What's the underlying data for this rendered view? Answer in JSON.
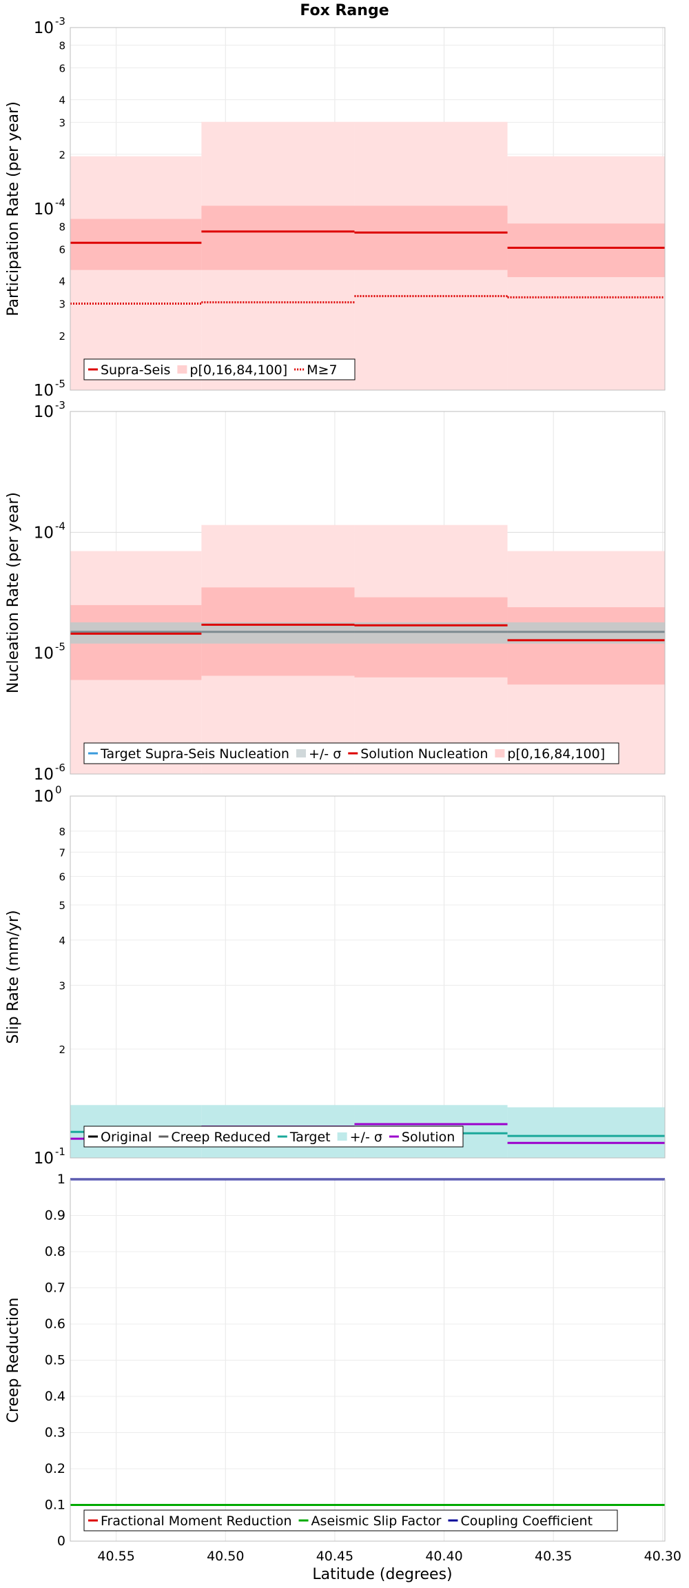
{
  "title": "Fox Range",
  "xlabel": "Latitude (degrees)",
  "x_ticks": [
    "40.55",
    "40.50",
    "40.45",
    "40.40",
    "40.35",
    "40.30"
  ],
  "chart_data": [
    {
      "type": "line",
      "ylabel": "Participation Rate (per year)",
      "scale": "log",
      "ylim": [
        1e-05,
        0.001
      ],
      "xlim": [
        40.571,
        40.299
      ],
      "y_ticks": [
        {
          "v": 1e-05,
          "base": "10",
          "exp": "-5",
          "major": true
        },
        {
          "v": 2e-05,
          "label": "2"
        },
        {
          "v": 3e-05,
          "label": "3"
        },
        {
          "v": 4e-05,
          "label": "4"
        },
        {
          "v": 6e-05,
          "label": "6"
        },
        {
          "v": 8e-05,
          "label": "8"
        },
        {
          "v": 0.0001,
          "base": "10",
          "exp": "-4",
          "major": true
        },
        {
          "v": 0.0002,
          "label": "2"
        },
        {
          "v": 0.0003,
          "label": "3"
        },
        {
          "v": 0.0004,
          "label": "4"
        },
        {
          "v": 0.0006,
          "label": "6"
        },
        {
          "v": 0.0008,
          "label": "8"
        },
        {
          "v": 0.001,
          "base": "10",
          "exp": "-3",
          "major": true
        }
      ],
      "segments": [
        [
          40.571,
          40.511
        ],
        [
          40.511,
          40.441
        ],
        [
          40.441,
          40.371
        ],
        [
          40.371,
          40.299
        ]
      ],
      "bands": [
        {
          "color": "#ffe0e0",
          "low": [
            1e-05,
            1e-05,
            1e-05,
            1e-05
          ],
          "high": [
            0.000195,
            0.000302,
            0.000302,
            0.000195
          ]
        },
        {
          "color": "#ffbcbc",
          "low": [
            4.6e-05,
            4.6e-05,
            4.6e-05,
            4.2e-05
          ],
          "high": [
            8.8e-05,
            0.000104,
            0.000104,
            8.3e-05
          ]
        }
      ],
      "series": [
        {
          "name": "Supra-Seis",
          "color": "#dd0000",
          "style": "solid",
          "values": [
            6.5e-05,
            7.5e-05,
            7.4e-05,
            6.1e-05
          ]
        },
        {
          "name": "M≥7",
          "color": "#dd0000",
          "style": "dotted",
          "values": [
            3e-05,
            3.05e-05,
            3.3e-05,
            3.25e-05
          ]
        }
      ],
      "legend": {
        "placement": "lower-left",
        "items": [
          {
            "label": "Supra-Seis",
            "color": "#dd0000",
            "kind": "line"
          },
          {
            "label": "p[0,16,84,100]",
            "color": "#ffd0d0",
            "kind": "patch"
          },
          {
            "label": "M≥7",
            "color": "#dd0000",
            "kind": "dotted"
          }
        ]
      }
    },
    {
      "type": "line",
      "ylabel": "Nucleation Rate (per year)",
      "scale": "log",
      "ylim": [
        1e-06,
        0.001
      ],
      "xlim": [
        40.571,
        40.299
      ],
      "y_ticks": [
        {
          "v": 1e-06,
          "base": "10",
          "exp": "-6",
          "major": true
        },
        {
          "v": 1e-05,
          "base": "10",
          "exp": "-5",
          "major": true
        },
        {
          "v": 0.0001,
          "base": "10",
          "exp": "-4",
          "major": true
        },
        {
          "v": 0.001,
          "base": "10",
          "exp": "-3",
          "major": true
        }
      ],
      "segments": [
        [
          40.571,
          40.511
        ],
        [
          40.511,
          40.441
        ],
        [
          40.441,
          40.371
        ],
        [
          40.371,
          40.299
        ]
      ],
      "bands": [
        {
          "color": "#ffe0e0",
          "low": [
            1e-06,
            1e-06,
            1e-06,
            1e-06
          ],
          "high": [
            7e-05,
            0.000115,
            0.000115,
            7e-05
          ]
        },
        {
          "color": "#ffbcbc",
          "low": [
            6e-06,
            6.5e-06,
            6.3e-06,
            5.5e-06
          ],
          "high": [
            2.5e-05,
            3.5e-05,
            2.9e-05,
            2.4e-05
          ]
        },
        {
          "color": "#c8c8c8",
          "low": [
            1.2e-05,
            1.2e-05,
            1.2e-05,
            1.2e-05
          ],
          "high": [
            1.8e-05,
            1.8e-05,
            1.8e-05,
            1.8e-05
          ]
        }
      ],
      "series": [
        {
          "name": "Target Supra-Seis Nucleation",
          "color": "#7d8b91",
          "style": "solid",
          "values": [
            1.5e-05,
            1.5e-05,
            1.5e-05,
            1.5e-05
          ]
        },
        {
          "name": "Solution Nucleation",
          "color": "#dd0000",
          "style": "solid",
          "values": [
            1.45e-05,
            1.72e-05,
            1.7e-05,
            1.28e-05
          ]
        }
      ],
      "legend": {
        "placement": "lower-left",
        "items": [
          {
            "label": "Target Supra-Seis Nucleation",
            "color": "#3a9bdc",
            "kind": "line"
          },
          {
            "label": "+/- σ",
            "color": "#d0d8da",
            "kind": "patch"
          },
          {
            "label": "Solution Nucleation",
            "color": "#dd0000",
            "kind": "line"
          },
          {
            "label": "p[0,16,84,100]",
            "color": "#ffd0d0",
            "kind": "patch"
          }
        ]
      }
    },
    {
      "type": "line",
      "ylabel": "Slip Rate (mm/yr)",
      "scale": "log",
      "ylim": [
        0.1,
        1.0
      ],
      "xlim": [
        40.571,
        40.299
      ],
      "y_ticks": [
        {
          "v": 0.1,
          "base": "10",
          "exp": "-1",
          "major": true
        },
        {
          "v": 0.2,
          "label": "2"
        },
        {
          "v": 0.3,
          "label": "3"
        },
        {
          "v": 0.4,
          "label": "4"
        },
        {
          "v": 0.5,
          "label": "5"
        },
        {
          "v": 0.6,
          "label": "6"
        },
        {
          "v": 0.7,
          "label": "7"
        },
        {
          "v": 0.8,
          "label": "8"
        },
        {
          "v": 1.0,
          "base": "10",
          "exp": "0",
          "major": true
        }
      ],
      "segments": [
        [
          40.571,
          40.511
        ],
        [
          40.511,
          40.441
        ],
        [
          40.441,
          40.371
        ],
        [
          40.371,
          40.299
        ]
      ],
      "bands": [
        {
          "color": "#bfeaea",
          "low": [
            0.1,
            0.1,
            0.1,
            0.1
          ],
          "high": [
            0.14,
            0.14,
            0.14,
            0.138
          ]
        }
      ],
      "series": [
        {
          "name": "Target",
          "color": "#1aa89a",
          "style": "solid",
          "values": [
            0.118,
            0.12,
            0.117,
            0.115
          ]
        },
        {
          "name": "Solution",
          "color": "#9b00cc",
          "style": "solid",
          "values": [
            0.113,
            0.122,
            0.124,
            0.11
          ]
        }
      ],
      "legend": {
        "placement": "lower-left",
        "items": [
          {
            "label": "Original",
            "color": "#000000",
            "kind": "line"
          },
          {
            "label": "Creep Reduced",
            "color": "#606060",
            "kind": "line"
          },
          {
            "label": "Target",
            "color": "#1aa89a",
            "kind": "line"
          },
          {
            "label": "+/- σ",
            "color": "#bfeaea",
            "kind": "patch"
          },
          {
            "label": "Solution",
            "color": "#9b00cc",
            "kind": "line"
          }
        ]
      }
    },
    {
      "type": "line",
      "ylabel": "Creep Reduction",
      "scale": "linear",
      "ylim": [
        0,
        1
      ],
      "xlim": [
        40.571,
        40.299
      ],
      "y_ticks": [
        {
          "v": 0,
          "label": "0"
        },
        {
          "v": 0.1,
          "label": "0.1"
        },
        {
          "v": 0.2,
          "label": "0.2"
        },
        {
          "v": 0.3,
          "label": "0.3"
        },
        {
          "v": 0.4,
          "label": "0.4"
        },
        {
          "v": 0.5,
          "label": "0.5"
        },
        {
          "v": 0.6,
          "label": "0.6"
        },
        {
          "v": 0.7,
          "label": "0.7"
        },
        {
          "v": 0.8,
          "label": "0.8"
        },
        {
          "v": 0.9,
          "label": "0.9"
        },
        {
          "v": 1,
          "label": "1"
        }
      ],
      "segments": [
        [
          40.571,
          40.299
        ]
      ],
      "bands": [],
      "series": [
        {
          "name": "Aseismic Slip Factor",
          "color": "#00aa00",
          "style": "solid",
          "values": [
            0.1
          ]
        },
        {
          "name": "Coupling Coefficient",
          "color": "#000099",
          "style": "solid",
          "values": [
            1.0
          ]
        }
      ],
      "legend": {
        "placement": "lower-left",
        "items": [
          {
            "label": "Fractional Moment Reduction",
            "color": "#dd0000",
            "kind": "line"
          },
          {
            "label": "Aseismic Slip Factor",
            "color": "#00aa00",
            "kind": "line"
          },
          {
            "label": "Coupling Coefficient",
            "color": "#000099",
            "kind": "line"
          }
        ]
      }
    }
  ]
}
